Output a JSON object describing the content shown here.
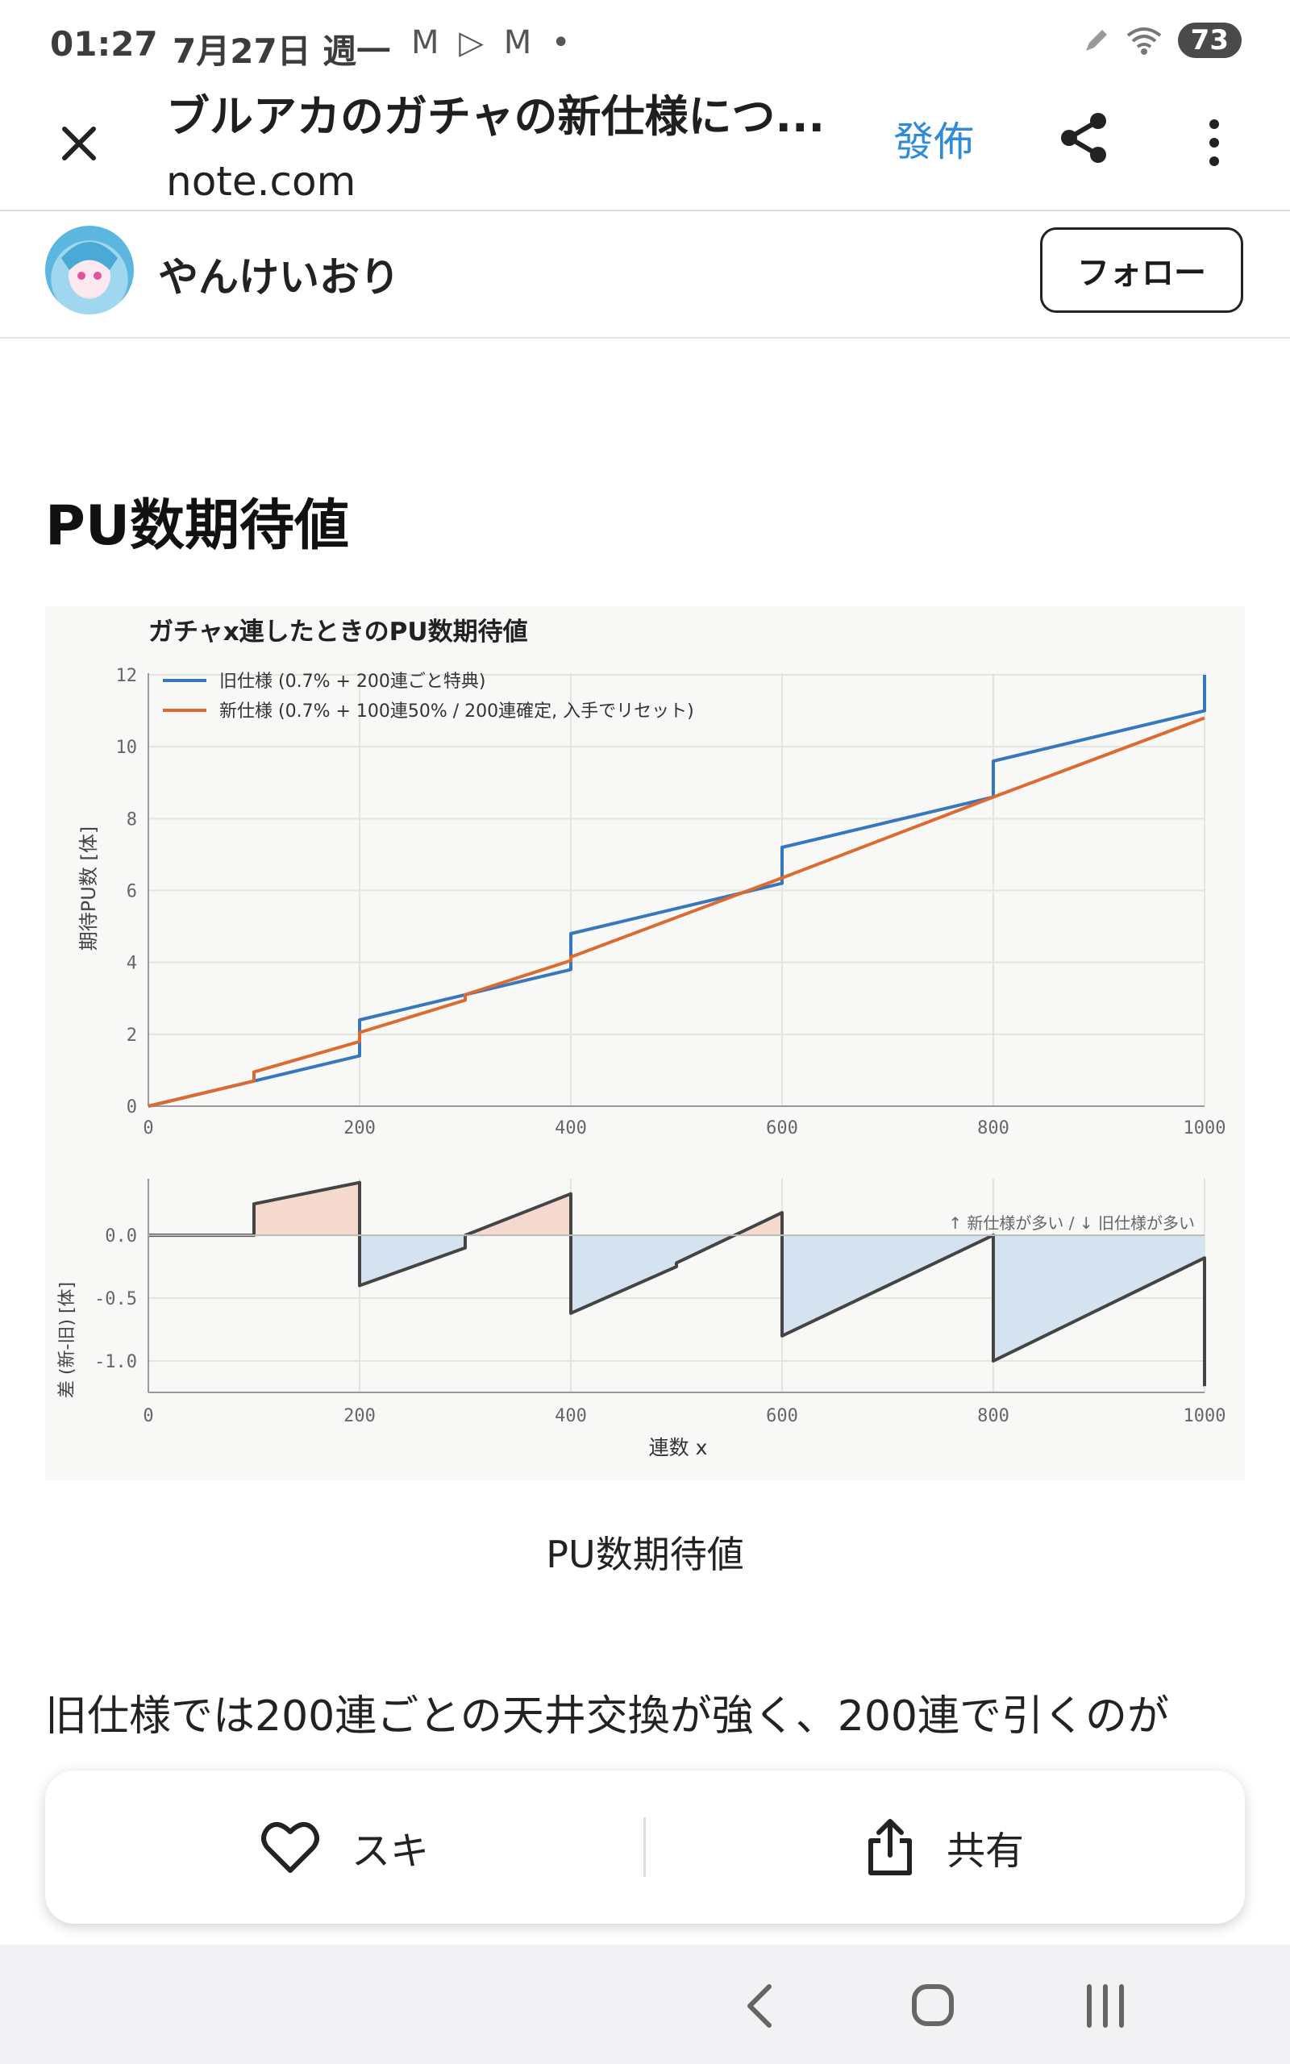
{
  "status_bar": {
    "time": "01:27",
    "date": "7月27日 週一",
    "notification_icons": "M ▷ M •",
    "battery": "73"
  },
  "browser": {
    "title": "ブルアカのガチャの新仕様につ...",
    "domain": "note.com",
    "publish_label": "發佈"
  },
  "author": {
    "name": "やんけいおり",
    "follow_label": "フォロー"
  },
  "article": {
    "heading": "PU数期待値",
    "caption": "PU数期待値",
    "body_text": "旧仕様では200連ごとの天井交換が強く、200連で引くのが"
  },
  "chart_data": [
    {
      "type": "line",
      "title": "ガチャx連したときのPU数期待値",
      "ylabel": "期待PU数 [体]",
      "xlabel": "",
      "xlim": [
        0,
        1000
      ],
      "ylim": [
        0,
        12
      ],
      "xticks": [
        "0",
        "200",
        "400",
        "600",
        "800",
        "1000"
      ],
      "yticks": [
        "0",
        "2",
        "4",
        "6",
        "8",
        "10",
        "12"
      ],
      "grid": true,
      "legend_position": "top-left",
      "series": [
        {
          "name": "旧仕様 (0.7% + 200連ごと特典)",
          "color": "#3777bd",
          "points": [
            [
              0,
              0
            ],
            [
              200,
              1.4
            ],
            [
              200,
              2.4
            ],
            [
              400,
              3.8
            ],
            [
              400,
              4.8
            ],
            [
              600,
              6.2
            ],
            [
              600,
              7.2
            ],
            [
              800,
              8.6
            ],
            [
              800,
              9.6
            ],
            [
              1000,
              11.0
            ],
            [
              1000,
              12.0
            ]
          ]
        },
        {
          "name": "新仕様 (0.7% + 100連50% / 200連確定, 入手でリセット)",
          "color": "#dc6b32",
          "points": [
            [
              0,
              0
            ],
            [
              100,
              0.7
            ],
            [
              100,
              0.95
            ],
            [
              200,
              1.8
            ],
            [
              200,
              2.05
            ],
            [
              300,
              2.95
            ],
            [
              300,
              3.1
            ],
            [
              400,
              4.05
            ],
            [
              400,
              4.15
            ],
            [
              500,
              5.25
            ],
            [
              600,
              6.35
            ],
            [
              800,
              8.6
            ],
            [
              1000,
              10.8
            ]
          ]
        }
      ]
    },
    {
      "type": "area",
      "ylabel": "差 (新-旧) [体]",
      "xlabel": "連数 x",
      "annotation": "↑ 新仕様が多い / ↓ 旧仕様が多い",
      "xlim": [
        0,
        1000
      ],
      "ylim": [
        -1.25,
        0.45
      ],
      "xticks": [
        "0",
        "200",
        "400",
        "600",
        "800",
        "1000"
      ],
      "yticks": [
        "0.0",
        "-0.5",
        "-1.0"
      ],
      "grid": true,
      "series": [
        {
          "name": "差",
          "color": "#444444",
          "positive_fill": "#f5d9cf",
          "negative_fill": "#d5e3f1",
          "points": [
            [
              0,
              0
            ],
            [
              100,
              0
            ],
            [
              100,
              0.25
            ],
            [
              200,
              0.42
            ],
            [
              200,
              -0.4
            ],
            [
              300,
              -0.1
            ],
            [
              300,
              0
            ],
            [
              400,
              0.33
            ],
            [
              400,
              -0.62
            ],
            [
              500,
              -0.25
            ],
            [
              500,
              -0.22
            ],
            [
              600,
              0.18
            ],
            [
              600,
              -0.8
            ],
            [
              800,
              0
            ],
            [
              800,
              -1.0
            ],
            [
              1000,
              -0.18
            ],
            [
              1000,
              -1.2
            ]
          ]
        }
      ]
    }
  ],
  "action_bar": {
    "like_label": "スキ",
    "share_label": "共有"
  },
  "icons": {
    "close": "close-icon",
    "share": "share-icon",
    "more": "more-vert-icon",
    "heart": "heart-icon",
    "upload": "upload-share-icon"
  }
}
